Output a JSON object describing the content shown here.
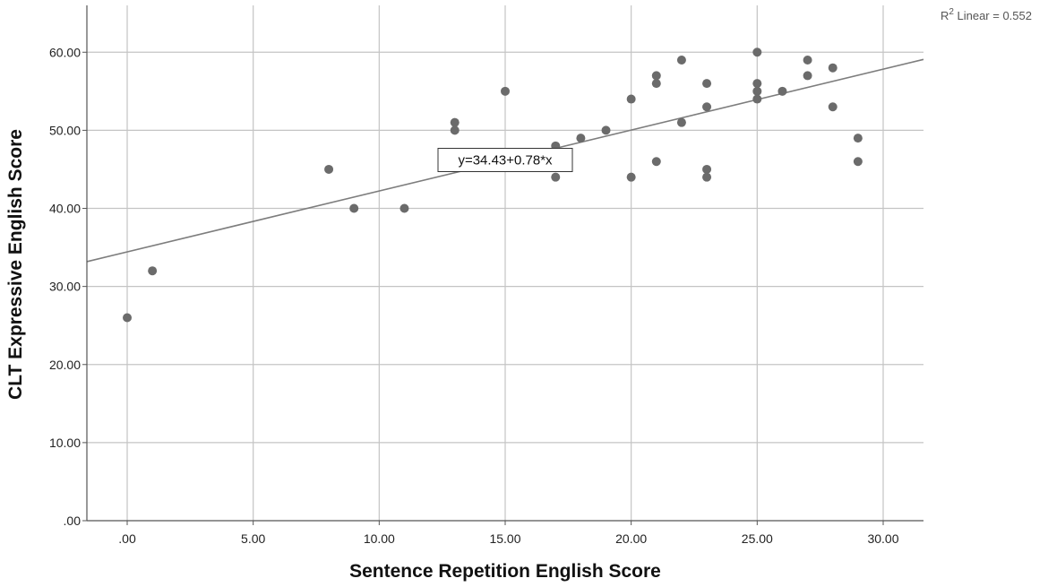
{
  "chart_data": {
    "type": "scatter",
    "xlabel": "Sentence Repetition English Score",
    "ylabel": "CLT Expressive English Score",
    "xlim": [
      -1.6,
      31.6
    ],
    "ylim": [
      0,
      66
    ],
    "x_ticks": [
      ".00",
      "5.00",
      "10.00",
      "15.00",
      "20.00",
      "25.00",
      "30.00"
    ],
    "x_tick_values": [
      0,
      5,
      10,
      15,
      20,
      25,
      30
    ],
    "y_ticks": [
      ".00",
      "10.00",
      "20.00",
      "30.00",
      "40.00",
      "50.00",
      "60.00"
    ],
    "y_tick_values": [
      0,
      10,
      20,
      30,
      40,
      50,
      60
    ],
    "grid": true,
    "points": [
      [
        0,
        26
      ],
      [
        1,
        32
      ],
      [
        8,
        45
      ],
      [
        9,
        40
      ],
      [
        11,
        40
      ],
      [
        13,
        51
      ],
      [
        13,
        50
      ],
      [
        15,
        55
      ],
      [
        17,
        48
      ],
      [
        17,
        44
      ],
      [
        18,
        49
      ],
      [
        19,
        50
      ],
      [
        20,
        54
      ],
      [
        20,
        44
      ],
      [
        21,
        57
      ],
      [
        21,
        56
      ],
      [
        21,
        46
      ],
      [
        22,
        59
      ],
      [
        22,
        51
      ],
      [
        23,
        56
      ],
      [
        23,
        53
      ],
      [
        23,
        45
      ],
      [
        23,
        44
      ],
      [
        25,
        60
      ],
      [
        25,
        56
      ],
      [
        25,
        55
      ],
      [
        25,
        54
      ],
      [
        26,
        55
      ],
      [
        27,
        59
      ],
      [
        27,
        57
      ],
      [
        28,
        58
      ],
      [
        28,
        53
      ],
      [
        29,
        49
      ],
      [
        29,
        46
      ]
    ],
    "fit_line": {
      "intercept": 34.43,
      "slope": 0.78
    },
    "annotations": {
      "equation": "y=34.43+0.78*x",
      "equation_anchor": [
        15,
        46.2
      ],
      "r2_prefix": "R",
      "r2_superscript": "2",
      "r2_text": " Linear = 0.552"
    },
    "colors": {
      "point": "#6b6b6b",
      "fit_line": "#7d7d7d",
      "grid": "#c4c4c4",
      "axis": "#555555"
    }
  }
}
